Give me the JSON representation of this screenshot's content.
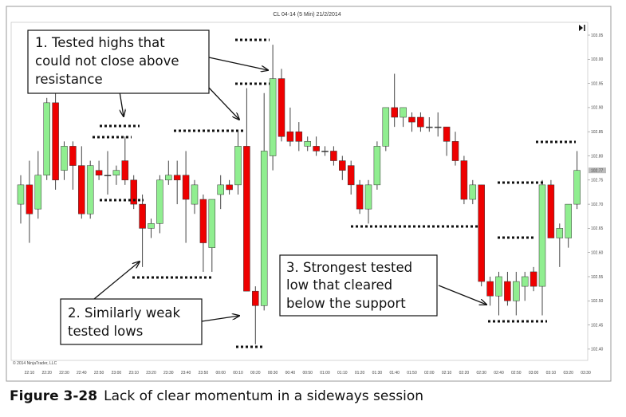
{
  "chart_data": {
    "type": "candlestick",
    "title": "CL 04-14 (5 Min) 21/2/2014",
    "watermark": "© 2014 NinjaTrader, LLC",
    "categories": [
      null,
      "22:10",
      null,
      "22:20",
      null,
      "22:30",
      null,
      "22:40",
      null,
      "22:50",
      null,
      "23:00",
      null,
      "23:10",
      null,
      "23:20",
      null,
      "23:30",
      null,
      "23:40",
      null,
      "23:50",
      null,
      "00:00",
      null,
      "00:10",
      null,
      "00:20",
      null,
      "00:30",
      null,
      "00:40",
      null,
      "00:50",
      null,
      "01:00",
      null,
      "01:10",
      null,
      "01:20",
      null,
      "01:30",
      null,
      "01:40",
      null,
      "01:50",
      null,
      "02:00",
      null,
      "02:10",
      null,
      "02:20",
      null,
      "02:30",
      null,
      "02:40",
      null,
      "02:50",
      null,
      "03:00",
      null,
      "03:10",
      null,
      "03:20",
      null,
      "03:30"
    ],
    "open": [
      102.7,
      102.74,
      102.69,
      102.76,
      102.91,
      102.77,
      102.82,
      102.78,
      102.68,
      102.77,
      102.76,
      102.76,
      102.79,
      102.75,
      102.7,
      102.65,
      102.66,
      102.75,
      102.76,
      102.76,
      102.7,
      102.71,
      102.61,
      102.72,
      102.74,
      102.74,
      102.82,
      102.52,
      102.49,
      102.8,
      102.96,
      102.85,
      102.85,
      102.82,
      102.82,
      102.81,
      102.81,
      102.79,
      102.78,
      102.74,
      102.69,
      102.74,
      102.82,
      102.9,
      102.88,
      102.88,
      102.88,
      102.86,
      102.86,
      102.86,
      102.83,
      102.79,
      102.71,
      102.74,
      102.54,
      102.51,
      102.54,
      102.5,
      102.53,
      102.56,
      102.53,
      102.74,
      102.63,
      102.63,
      102.7,
      null
    ],
    "high": [
      102.76,
      102.79,
      102.81,
      102.92,
      102.93,
      102.83,
      102.83,
      102.82,
      102.79,
      102.79,
      102.81,
      102.78,
      102.84,
      102.76,
      102.72,
      102.67,
      102.76,
      102.79,
      102.79,
      102.81,
      102.75,
      102.72,
      102.71,
      102.76,
      102.75,
      102.85,
      102.94,
      102.53,
      102.93,
      103.03,
      102.98,
      102.9,
      102.87,
      102.84,
      102.84,
      102.82,
      102.82,
      102.8,
      102.79,
      102.75,
      102.75,
      102.83,
      102.9,
      102.97,
      102.9,
      102.89,
      102.89,
      102.88,
      102.89,
      102.86,
      102.85,
      102.8,
      102.75,
      102.74,
      102.55,
      102.56,
      102.56,
      102.56,
      102.56,
      102.57,
      102.75,
      102.75,
      102.66,
      102.7,
      102.81,
      null
    ],
    "low": [
      102.66,
      102.62,
      102.67,
      102.75,
      102.73,
      102.75,
      102.73,
      102.67,
      102.67,
      102.75,
      102.72,
      102.74,
      102.74,
      102.69,
      102.57,
      102.63,
      102.64,
      102.74,
      102.7,
      102.62,
      102.68,
      102.56,
      102.56,
      102.69,
      102.72,
      102.72,
      102.52,
      102.41,
      102.48,
      102.77,
      102.83,
      102.82,
      102.81,
      102.81,
      102.8,
      102.8,
      102.78,
      102.75,
      102.72,
      102.68,
      102.66,
      102.73,
      102.81,
      102.86,
      102.86,
      102.85,
      102.85,
      102.85,
      102.84,
      102.8,
      102.78,
      102.7,
      102.7,
      102.53,
      102.49,
      102.47,
      102.49,
      102.47,
      102.5,
      102.52,
      102.47,
      102.63,
      102.57,
      102.61,
      102.69,
      null
    ],
    "close": [
      102.74,
      102.68,
      102.76,
      102.91,
      102.75,
      102.82,
      102.78,
      102.68,
      102.78,
      102.76,
      102.76,
      102.77,
      102.75,
      102.7,
      102.65,
      102.66,
      102.75,
      102.76,
      102.75,
      102.71,
      102.74,
      102.62,
      102.71,
      102.74,
      102.73,
      102.82,
      102.52,
      102.49,
      102.81,
      102.96,
      102.84,
      102.83,
      102.83,
      102.83,
      102.81,
      102.81,
      102.79,
      102.77,
      102.74,
      102.69,
      102.74,
      102.82,
      102.9,
      102.88,
      102.9,
      102.87,
      102.86,
      102.86,
      102.86,
      102.83,
      102.79,
      102.71,
      102.74,
      102.54,
      102.51,
      102.55,
      102.5,
      102.54,
      102.55,
      102.53,
      102.74,
      102.63,
      102.65,
      102.7,
      102.77,
      null
    ],
    "up_color": "#90ee90",
    "down_color": "#ee0000",
    "ylim": [
      102.38,
      103.07
    ],
    "yticks": [
      {
        "value": 102.4,
        "label": "102.40"
      },
      102.45,
      {
        "value": 102.5,
        "label": "102.50"
      },
      102.55,
      {
        "value": 102.6,
        "label": "102.60"
      },
      102.65,
      {
        "value": 102.7,
        "label": "102.70"
      },
      102.75,
      {
        "value": 102.8,
        "label": "102.80"
      },
      102.85,
      {
        "value": 102.9,
        "label": "102.90"
      },
      102.95,
      {
        "value": 103,
        "label": "103.00"
      },
      103.05
    ],
    "grid": false,
    "annotations": [
      {
        "lines": [
          "1. Tested highs that",
          "could not close above",
          "resistance"
        ]
      },
      {
        "lines": [
          "2. Similarly weak",
          "tested lows"
        ]
      },
      {
        "lines": [
          "3. Strongest tested",
          "low that cleared",
          "below the support"
        ]
      }
    ]
  },
  "caption": {
    "label": "Figure 3-28",
    "text": "Lack of clear momentum in a sideways session"
  }
}
